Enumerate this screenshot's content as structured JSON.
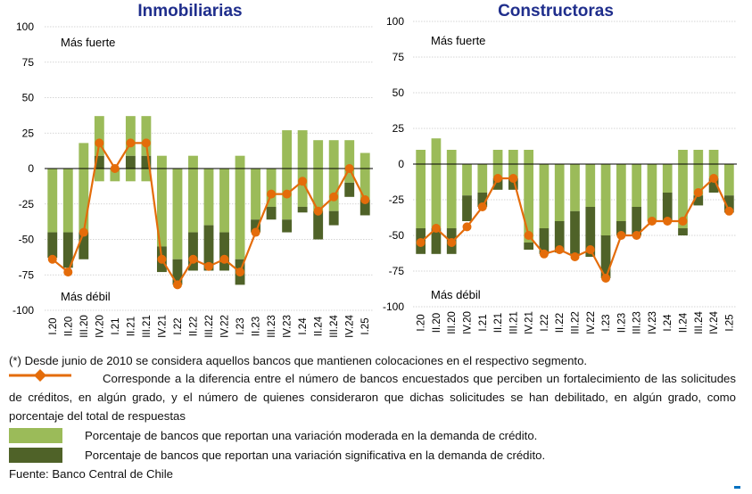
{
  "colors": {
    "moderate": "#9bbb59",
    "significant": "#4f6228",
    "line": "#e46c0a",
    "grid": "#c8c8c8",
    "title": "#1f2e8c"
  },
  "chart_data": [
    {
      "type": "bar",
      "title": "Inmobiliarias",
      "stacked": true,
      "ylim": [
        -100,
        100
      ],
      "yticks": [
        100,
        75,
        50,
        25,
        0,
        -25,
        -50,
        -75,
        -100
      ],
      "annotation_top": "Más fuerte",
      "annotation_bottom": "Más débil",
      "categories": [
        "I.20",
        "II.20",
        "III.20",
        "IV.20",
        "I.21",
        "II.21",
        "III.21",
        "IV.21",
        "I.22",
        "II.22",
        "III.22",
        "IV.22",
        "I.23",
        "II.23",
        "III.23",
        "IV.23",
        "I.24",
        "II.24",
        "III.24",
        "IV.24",
        "I.25"
      ],
      "series": [
        {
          "name": "Moderada positiva",
          "values": [
            0,
            0,
            18,
            28,
            0,
            28,
            28,
            9,
            0,
            9,
            0,
            0,
            9,
            0,
            0,
            27,
            27,
            20,
            20,
            20,
            11
          ]
        },
        {
          "name": "Significativa positiva",
          "values": [
            0,
            0,
            0,
            9,
            0,
            9,
            9,
            0,
            0,
            0,
            0,
            0,
            0,
            0,
            0,
            0,
            0,
            0,
            0,
            0,
            0
          ]
        },
        {
          "name": "Moderada negativa",
          "values": [
            -45,
            -45,
            -45,
            -9,
            -9,
            -9,
            -9,
            -55,
            -64,
            -45,
            -40,
            -45,
            -64,
            -36,
            -27,
            -36,
            -27,
            -30,
            -30,
            -10,
            -22
          ]
        },
        {
          "name": "Significativa negativa",
          "values": [
            -18,
            -25,
            -19,
            0,
            0,
            0,
            0,
            -18,
            -18,
            -27,
            -32,
            -27,
            -18,
            -9,
            -9,
            -9,
            -4,
            -20,
            -10,
            -10,
            -11
          ]
        },
        {
          "name": "Indicador neto",
          "type": "line",
          "values": [
            -64,
            -73,
            -45,
            18,
            0,
            18,
            18,
            -64,
            -82,
            -64,
            -69,
            -64,
            -73,
            -45,
            -18,
            -18,
            -9,
            -30,
            -20,
            0,
            -22
          ]
        }
      ]
    },
    {
      "type": "bar",
      "title": "Constructoras",
      "stacked": true,
      "ylim": [
        -100,
        100
      ],
      "yticks": [
        100,
        75,
        50,
        25,
        0,
        -25,
        -50,
        -75,
        -100
      ],
      "annotation_top": "Más fuerte",
      "annotation_bottom": "Más débil",
      "categories": [
        "I.20",
        "II.20",
        "III.20",
        "IV.20",
        "I.21",
        "II.21",
        "III.21",
        "IV.21",
        "I.22",
        "II.22",
        "III.22",
        "IV.22",
        "I.23",
        "II.23",
        "III.23",
        "IV.23",
        "I.24",
        "II.24",
        "III.24",
        "IV.24",
        "I.25"
      ],
      "series": [
        {
          "name": "Moderada positiva",
          "values": [
            10,
            18,
            10,
            0,
            0,
            10,
            10,
            10,
            0,
            0,
            0,
            0,
            0,
            0,
            0,
            0,
            0,
            10,
            10,
            10,
            0
          ]
        },
        {
          "name": "Significativa positiva",
          "values": [
            0,
            0,
            0,
            0,
            0,
            0,
            0,
            0,
            0,
            0,
            0,
            0,
            0,
            0,
            0,
            0,
            0,
            0,
            0,
            0,
            0
          ]
        },
        {
          "name": "Moderada negativa",
          "values": [
            -45,
            -45,
            -45,
            -22,
            -20,
            -10,
            -10,
            -55,
            -45,
            -40,
            -33,
            -30,
            -50,
            -40,
            -30,
            -40,
            -20,
            -45,
            -22,
            -10,
            -22
          ]
        },
        {
          "name": "Significativa negativa",
          "values": [
            -18,
            -18,
            -18,
            -18,
            -10,
            -8,
            -8,
            -5,
            -18,
            -22,
            -30,
            -35,
            -30,
            -10,
            -20,
            0,
            -20,
            -5,
            -7,
            -10,
            -12
          ]
        },
        {
          "name": "Indicador neto",
          "type": "line",
          "values": [
            -55,
            -45,
            -55,
            -44,
            -30,
            -10,
            -10,
            -50,
            -63,
            -60,
            -65,
            -60,
            -80,
            -50,
            -50,
            -40,
            -40,
            -40,
            -20,
            -10,
            -33
          ]
        }
      ]
    }
  ],
  "notes": {
    "footnote": "(*) Desde junio de 2010 se considera aquellos bancos que mantienen colocaciones en el respectivo segmento.",
    "line_legend": "Corresponde a la diferencia entre el número de bancos encuestados que perciben un fortalecimiento de las solicitudes de créditos, en algún grado, y el número de quienes consideraron que dichas solicitudes se han debilitado, en algún grado, como porcentaje del total de respuestas",
    "moderate_legend": "Porcentaje de bancos que reportan una variación moderada en la demanda de crédito.",
    "significant_legend": "Porcentaje de bancos que reportan una variación significativa en la demanda de crédito.",
    "source": "Fuente: Banco Central de Chile"
  }
}
